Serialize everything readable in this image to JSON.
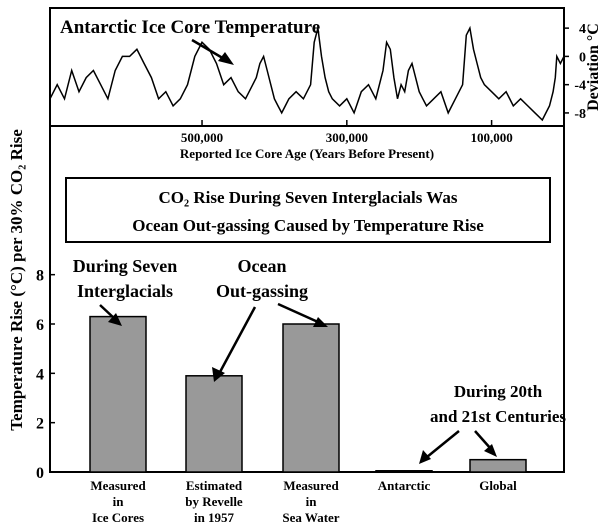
{
  "colors": {
    "bar_fill": "#999999",
    "stroke": "#000000",
    "background": "#ffffff"
  },
  "chart_data": [
    {
      "type": "line",
      "title": "Antarctic Ice Core Temperature",
      "xlabel": "Reported Ice Core Age (Years Before Present)",
      "ylabel": "Deviation °C",
      "xlim": [
        710000,
        0
      ],
      "ylim": [
        -9,
        6
      ],
      "x_ticks": [
        "500,000",
        "300,000",
        "100,000"
      ],
      "x_tick_values": [
        500000,
        300000,
        100000
      ],
      "y_ticks": [
        "4",
        "0",
        "-4",
        "-8"
      ],
      "y_tick_values": [
        4,
        0,
        -4,
        -8
      ],
      "grid": false,
      "series": [
        {
          "x": [
            710000,
            700000,
            690000,
            680000,
            670000,
            660000,
            650000,
            640000,
            630000,
            620000,
            610000,
            600000,
            590000,
            580000,
            570000,
            560000,
            550000,
            540000,
            530000,
            520000,
            510000,
            500000,
            490000,
            480000,
            470000,
            460000,
            450000,
            440000,
            430000,
            425000,
            420000,
            415000,
            410000,
            405000,
            400000,
            395000,
            390000,
            385000,
            380000,
            370000,
            360000,
            350000,
            345000,
            340000,
            335000,
            330000,
            325000,
            320000,
            310000,
            300000,
            290000,
            280000,
            270000,
            260000,
            250000,
            245000,
            240000,
            235000,
            230000,
            225000,
            220000,
            215000,
            210000,
            205000,
            200000,
            195000,
            190000,
            180000,
            170000,
            160000,
            150000,
            140000,
            135000,
            130000,
            125000,
            120000,
            115000,
            110000,
            100000,
            90000,
            80000,
            70000,
            60000,
            50000,
            40000,
            30000,
            25000,
            20000,
            15000,
            12000,
            10000,
            5000,
            0
          ],
          "y": [
            -6,
            -4,
            -6,
            -2,
            -5,
            -3,
            -2,
            -4,
            -6,
            -2,
            0,
            0,
            1,
            -1,
            -3,
            -6,
            -5,
            -7,
            -6,
            -4,
            0,
            2,
            1,
            -1,
            -4,
            -3,
            -5,
            -6,
            -4,
            -3,
            -1,
            0,
            -2,
            -4,
            -6,
            -7,
            -8,
            -7,
            -6,
            -5,
            -6,
            -4,
            2,
            4,
            0,
            -3,
            -5,
            -6,
            -7,
            -6,
            -8,
            -5,
            -4,
            -6,
            -2,
            2,
            1,
            -3,
            -6,
            -4,
            -5,
            -2,
            -1,
            -3,
            -5,
            -6,
            -7,
            -6,
            -5,
            -8,
            -6,
            -4,
            3,
            4,
            1,
            -1,
            -3,
            -4,
            -5,
            -6,
            -5,
            -7,
            -6,
            -7,
            -8,
            -9,
            -8,
            -7,
            -5,
            -3,
            0,
            -1,
            0
          ]
        }
      ]
    },
    {
      "type": "bar",
      "title": "CO₂ Rise During Seven Interglacials Was Ocean Out-gassing Caused by Temperature Rise",
      "title_lines": [
        "CO₂ Rise During Seven Interglacials Was",
        "Ocean Out-gassing Caused by Temperature Rise"
      ],
      "ylabel": "Temperature Rise (°C) per 30% CO₂ Rise",
      "xlabel": "",
      "ylim": [
        0,
        9
      ],
      "y_ticks": [
        "0",
        "2",
        "4",
        "6",
        "8"
      ],
      "y_tick_values": [
        0,
        2,
        4,
        6,
        8
      ],
      "grid": false,
      "categories": [
        "Measured in Ice Cores",
        "Estimated by Revelle in 1957",
        "Measured in Sea Water",
        "Antarctic",
        "Global"
      ],
      "category_lines": [
        [
          "Measured",
          "in",
          "Ice Cores"
        ],
        [
          "Estimated",
          "by Revelle",
          "in 1957"
        ],
        [
          "Measured",
          "in",
          "Sea Water"
        ],
        [
          "Antarctic"
        ],
        [
          "Global"
        ]
      ],
      "values": [
        6.3,
        3.9,
        6.0,
        0.05,
        0.5
      ],
      "annotations": [
        {
          "lines": [
            "During Seven",
            "Interglacials"
          ]
        },
        {
          "lines": [
            "Ocean",
            "Out-gassing"
          ]
        },
        {
          "lines": [
            "During 20th",
            "and 21st Centuries"
          ]
        }
      ]
    }
  ]
}
